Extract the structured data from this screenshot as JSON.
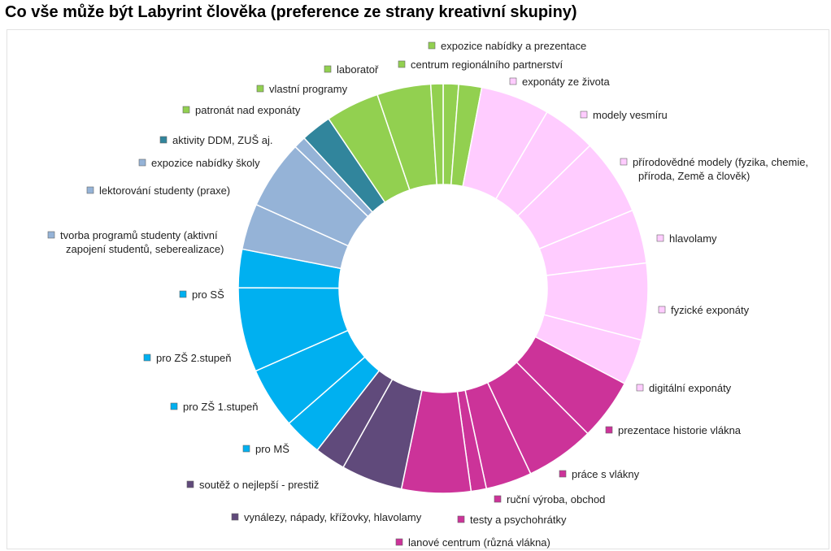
{
  "title": "Co vše může být Labyrint člověka (preference ze strany kreativní skupiny)",
  "chart_data": {
    "type": "pie",
    "variant": "doughnut",
    "title": "Co vše může být Labyrint člověka (preference ze strany kreativní skupiny)",
    "legend": "labels-around",
    "categories": [
      "expozice nabídky a prezentace",
      "centrum regionálního partnerství",
      "exponáty ze života",
      "modely vesmíru",
      "přírodovědné modely (fyzika, chemie, příroda, Země a člověk)",
      "hlavolamy",
      "fyzické exponáty",
      "digitální exponáty",
      "prezentace historie vlákna",
      "práce s vlákny",
      "ruční výroba, obchod",
      "testy a psychohrátky",
      "lanové centrum (různá vlákna)",
      "vynálezy, nápady, křížovky, hlavolamy",
      "soutěž o nejlepší - prestiž",
      "pro MŠ",
      "pro ZŠ 1.stupeň",
      "pro ZŠ 2.stupeň",
      "pro SŠ",
      "tvorba programů studenty (aktivní zapojení studentů, seberealizace)",
      "lektorování studenty (praxe)",
      "expozice nabídky školy",
      "aktivity DDM, ZUŠ aj.",
      "patronát nad exponáty",
      "vlastní programy",
      "laboratoř"
    ],
    "values": [
      1.0,
      1.5,
      4.5,
      3.5,
      5.0,
      3.5,
      5.0,
      3.0,
      4.0,
      4.5,
      3.0,
      1.0,
      4.5,
      4.0,
      2.0,
      2.5,
      4.0,
      5.5,
      2.5,
      3.0,
      4.5,
      0.8,
      2.0,
      3.5,
      3.5,
      0.8
    ],
    "colors": [
      "#92d050",
      "#92d050",
      "#ffccff",
      "#ffccff",
      "#ffccff",
      "#ffccff",
      "#ffccff",
      "#ffccff",
      "#cc3399",
      "#cc3399",
      "#cc3399",
      "#cc3399",
      "#cc3399",
      "#604a7b",
      "#604a7b",
      "#00b0f0",
      "#00b0f0",
      "#00b0f0",
      "#00b0f0",
      "#95b3d7",
      "#95b3d7",
      "#95b3d7",
      "#31859c",
      "#92d050",
      "#92d050",
      "#92d050"
    ]
  }
}
